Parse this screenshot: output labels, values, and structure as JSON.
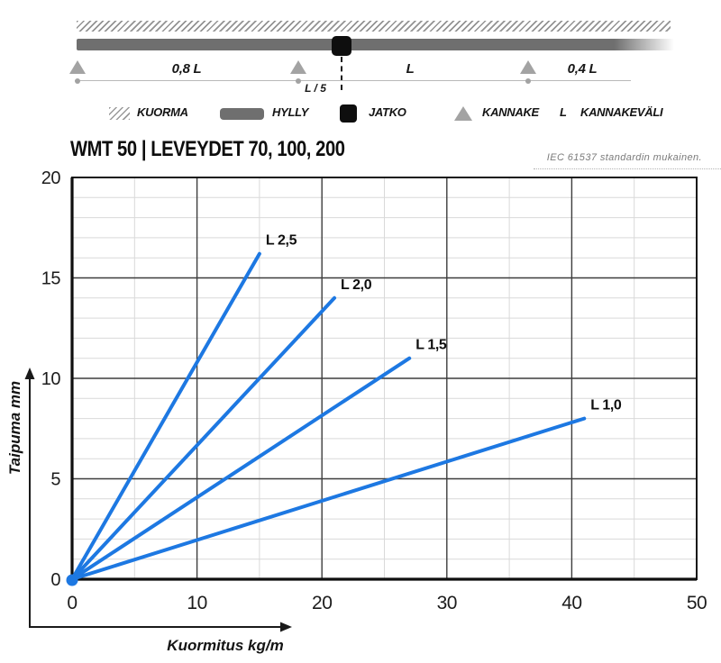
{
  "schematic": {
    "spans": {
      "left": "0,8 L",
      "middle": "L",
      "right": "0,4 L",
      "joint_offset": "L / 5"
    },
    "colors": {
      "shelf": "#6f6f6f",
      "support": "#a3a3a3",
      "joint": "#0e0e0e",
      "hatch": "#939393"
    }
  },
  "legend": {
    "items": [
      {
        "name": "kuorma",
        "label": "KUORMA"
      },
      {
        "name": "hylly",
        "label": "HYLLY"
      },
      {
        "name": "jatko",
        "label": "JATKO"
      },
      {
        "name": "kannake",
        "label": "KANNAKE"
      },
      {
        "name": "kannakevali",
        "symbol": "L",
        "label": "KANNAKEVÄLI"
      }
    ]
  },
  "header": {
    "title": "WMT 50 | LEVEYDET 70, 100, 200",
    "note": "IEC 61537 standardin mukainen."
  },
  "chart_data": {
    "type": "line",
    "title": "",
    "xlabel": "Kuormitus kg/m",
    "ylabel": "Taipuma mm",
    "xlim": [
      0,
      50
    ],
    "ylim": [
      0,
      20
    ],
    "x_major_ticks": [
      0,
      10,
      20,
      30,
      40,
      50
    ],
    "x_minor_step": 5,
    "y_major_ticks": [
      0,
      5,
      10,
      15,
      20
    ],
    "y_minor_step": 1,
    "grid": true,
    "legend_position": "labels at line ends",
    "line_color": "#1d78e2",
    "series": [
      {
        "name": "L 2,5",
        "x": [
          0,
          15
        ],
        "y": [
          0,
          16.2
        ]
      },
      {
        "name": "L 2,0",
        "x": [
          0,
          21
        ],
        "y": [
          0,
          14
        ]
      },
      {
        "name": "L 1,5",
        "x": [
          0,
          27
        ],
        "y": [
          0,
          11
        ]
      },
      {
        "name": "L 1,0",
        "x": [
          0,
          41
        ],
        "y": [
          0,
          8
        ]
      }
    ]
  }
}
